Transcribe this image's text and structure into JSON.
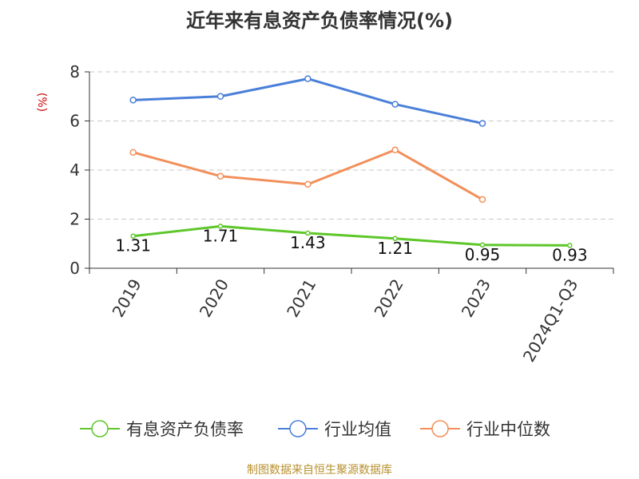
{
  "chart_data": {
    "type": "line",
    "title": "近年来有息资产负债率情况(%)",
    "ylabel": "(%)",
    "xlabel": "",
    "categories": [
      "2019",
      "2020",
      "2021",
      "2022",
      "2023",
      "2024Q1-Q3"
    ],
    "ylim": [
      0,
      8
    ],
    "yticks": [
      0,
      2,
      4,
      6,
      8
    ],
    "grid": true,
    "legend_position": "bottom",
    "series": [
      {
        "name": "有息资产负债率",
        "color": "#5ec72a",
        "values": [
          1.31,
          1.71,
          1.43,
          1.21,
          0.95,
          0.93
        ],
        "labels": [
          "1.31",
          "1.71",
          "1.43",
          "1.21",
          "0.95",
          "0.93"
        ]
      },
      {
        "name": "行业均值",
        "color": "#4a7fd9",
        "values": [
          6.85,
          7.0,
          7.72,
          6.68,
          5.9,
          null
        ]
      },
      {
        "name": "行业中位数",
        "color": "#f28f5a",
        "values": [
          4.72,
          3.75,
          3.42,
          4.82,
          2.8,
          null
        ]
      }
    ]
  },
  "source": "制图数据来自恒生聚源数据库"
}
